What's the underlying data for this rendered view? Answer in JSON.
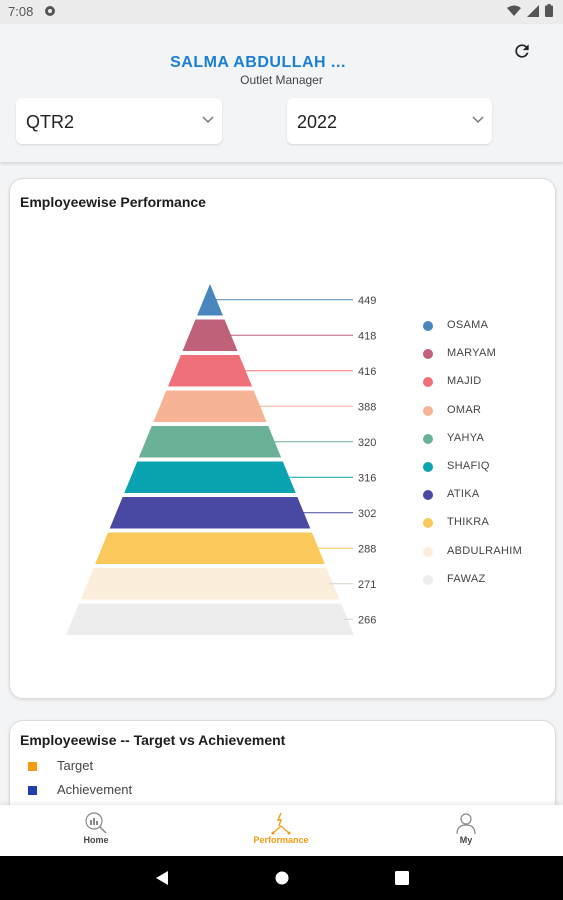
{
  "status": {
    "time": "7:08"
  },
  "header": {
    "user_name": "SALMA ABDULLAH ...",
    "user_role": "Outlet Manager",
    "quarter": "QTR2",
    "year": "2022"
  },
  "performance_card": {
    "title": "Employeewise Performance",
    "chart_data": {
      "type": "pyramid",
      "title": "Employeewise Performance",
      "series": [
        {
          "name": "OSAMA",
          "value": 449,
          "color": "#4a86be"
        },
        {
          "name": "MARYAM",
          "value": 418,
          "color": "#c0617a"
        },
        {
          "name": "MAJID",
          "value": 416,
          "color": "#f07079"
        },
        {
          "name": "OMAR",
          "value": 388,
          "color": "#f6b396"
        },
        {
          "name": "YAHYA",
          "value": 320,
          "color": "#6bb197"
        },
        {
          "name": "SHAFIQ",
          "value": 316,
          "color": "#0aa3b0"
        },
        {
          "name": "ATIKA",
          "value": 302,
          "color": "#4949a3"
        },
        {
          "name": "THIKRA",
          "value": 288,
          "color": "#fbc95b"
        },
        {
          "name": "ABDULRAHIM",
          "value": 271,
          "color": "#fbefdc"
        },
        {
          "name": "FAWAZ",
          "value": 266,
          "color": "#ededee"
        }
      ],
      "legend_position": "right"
    }
  },
  "tva_card": {
    "title": "Employeewise -- Target vs Achievement",
    "legend": [
      {
        "label": "Target",
        "color": "#f39c12"
      },
      {
        "label": "Achievement",
        "color": "#1f3fae"
      }
    ]
  },
  "nav": {
    "home": "Home",
    "performance": "Performance",
    "my": "My",
    "active_color": "#f39c12"
  }
}
